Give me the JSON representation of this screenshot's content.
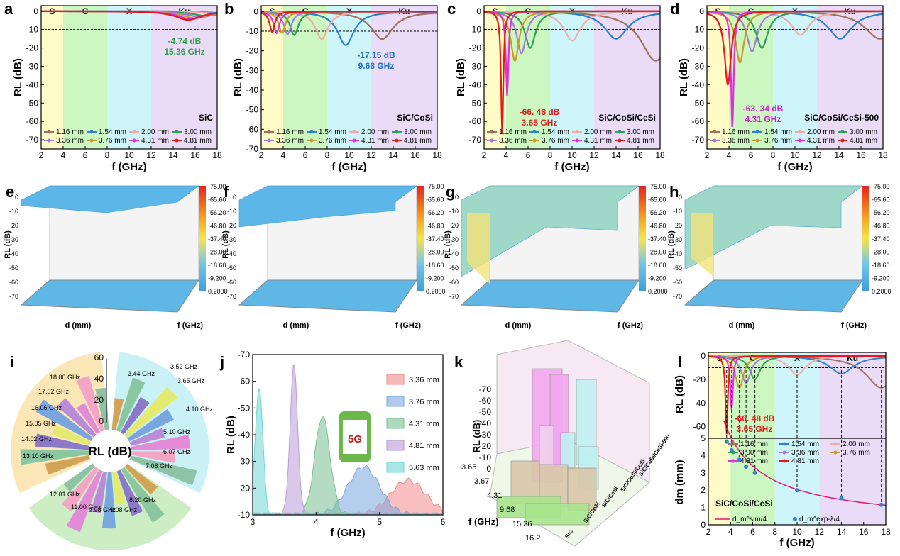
{
  "chart_data": [
    {
      "panel": "a",
      "type": "line",
      "title": "SiC",
      "xlabel": "f (GHz)",
      "ylabel": "RL (dB)",
      "xlim": [
        2,
        18
      ],
      "ylim": [
        -75,
        3
      ],
      "xticks": [
        "2",
        "4",
        "6",
        "8",
        "10",
        "12",
        "14",
        "16",
        "18"
      ],
      "yticks": [
        "0",
        "-10",
        "-20",
        "-30",
        "-40",
        "-50",
        "-60",
        "-70"
      ],
      "bands": [
        "S",
        "C",
        "X",
        "Ku"
      ],
      "annotation": {
        "line1": "-4.74 dB",
        "line2": "15.36 GHz",
        "color": "#2a9d4b"
      },
      "legend": [
        "1.16 mm",
        "1.54 mm",
        "2.00 mm",
        "3.00 mm",
        "3.36 mm",
        "3.76 mm",
        "4.31 mm",
        "4.81 mm"
      ],
      "series": [
        {
          "name": "1.16 mm",
          "min_freq": 18.0,
          "min_rl": -0.8
        },
        {
          "name": "1.54 mm",
          "min_freq": 18.0,
          "min_rl": -1.0
        },
        {
          "name": "2.00 mm",
          "min_freq": 18.0,
          "min_rl": -1.3
        },
        {
          "name": "3.00 mm",
          "min_freq": 17.0,
          "min_rl": -2.5
        },
        {
          "name": "3.36 mm",
          "min_freq": 16.5,
          "min_rl": -3.2
        },
        {
          "name": "3.76 mm",
          "min_freq": 16.0,
          "min_rl": -3.8
        },
        {
          "name": "4.31 mm",
          "min_freq": 15.6,
          "min_rl": -4.3
        },
        {
          "name": "4.81 mm",
          "min_freq": 15.36,
          "min_rl": -4.74
        }
      ]
    },
    {
      "panel": "b",
      "type": "line",
      "title": "SiC/CoSi",
      "xlabel": "f (GHz)",
      "ylabel": "RL (dB)",
      "xlim": [
        2,
        18
      ],
      "ylim": [
        -70,
        3
      ],
      "xticks": [
        "2",
        "4",
        "6",
        "8",
        "10",
        "12",
        "14",
        "16",
        "18"
      ],
      "yticks": [
        "0",
        "-10",
        "-20",
        "-30",
        "-40",
        "-50",
        "-60",
        "-70"
      ],
      "bands": [
        "S",
        "C",
        "X",
        "Ku"
      ],
      "annotation": {
        "line1": "-17.15 dB",
        "line2": "9.68 GHz",
        "color": "#1f6fc4"
      },
      "legend": [
        "1.16 mm",
        "1.54 mm",
        "2.00 mm",
        "3.00 mm",
        "3.36 mm",
        "3.76 mm",
        "4.31 mm",
        "4.81 mm"
      ],
      "series": [
        {
          "name": "1.16 mm",
          "min_freq": 13.0,
          "min_rl": -14.0
        },
        {
          "name": "1.54 mm",
          "min_freq": 9.68,
          "min_rl": -17.15
        },
        {
          "name": "2.00 mm",
          "min_freq": 7.5,
          "min_rl": -14.0
        },
        {
          "name": "3.00 mm",
          "min_freq": 5.0,
          "min_rl": -12.0
        },
        {
          "name": "3.36 mm",
          "min_freq": 4.4,
          "min_rl": -11.5
        },
        {
          "name": "3.76 mm",
          "min_freq": 3.9,
          "min_rl": -11.0
        },
        {
          "name": "4.31 mm",
          "min_freq": 3.4,
          "min_rl": -11.0
        },
        {
          "name": "4.81 mm",
          "min_freq": 3.0,
          "min_rl": -10.5
        }
      ]
    },
    {
      "panel": "c",
      "type": "line",
      "title": "SiC/CoSi/CeSi",
      "xlabel": "f (GHz)",
      "ylabel": "RL (dB)",
      "xlim": [
        2,
        18
      ],
      "ylim": [
        -75,
        3
      ],
      "xticks": [
        "2",
        "4",
        "6",
        "8",
        "10",
        "12",
        "14",
        "16",
        "18"
      ],
      "yticks": [
        "0",
        "-10",
        "-20",
        "-30",
        "-40",
        "-50",
        "-60",
        "-70"
      ],
      "bands": [
        "S",
        "C",
        "X",
        "Ku"
      ],
      "annotation": {
        "line1": "-66. 48 dB",
        "line2": "3.65 GHz",
        "color": "#e01b1b"
      },
      "legend": [
        "1.16 mm",
        "1.54 mm",
        "2.00 mm",
        "3.00 mm",
        "3.36 mm",
        "3.76 mm",
        "4.31 mm",
        "4.81 mm"
      ],
      "series": [
        {
          "name": "1.16 mm",
          "min_freq": 17.6,
          "min_rl": -27.0
        },
        {
          "name": "1.54 mm",
          "min_freq": 14.0,
          "min_rl": -15.0
        },
        {
          "name": "2.00 mm",
          "min_freq": 10.0,
          "min_rl": -16.0
        },
        {
          "name": "3.00 mm",
          "min_freq": 6.2,
          "min_rl": -20.0
        },
        {
          "name": "3.36 mm",
          "min_freq": 5.4,
          "min_rl": -23.0
        },
        {
          "name": "3.76 mm",
          "min_freq": 4.8,
          "min_rl": -27.0
        },
        {
          "name": "4.31 mm",
          "min_freq": 4.1,
          "min_rl": -46.0
        },
        {
          "name": "4.81 mm",
          "min_freq": 3.65,
          "min_rl": -66.48
        }
      ]
    },
    {
      "panel": "d",
      "type": "line",
      "title": "SiC/CoSi/CeSi-500",
      "xlabel": "f (GHz)",
      "ylabel": "RL (dB)",
      "xlim": [
        2,
        18
      ],
      "ylim": [
        -75,
        3
      ],
      "xticks": [
        "2",
        "4",
        "6",
        "8",
        "10",
        "12",
        "14",
        "16",
        "18"
      ],
      "yticks": [
        "0",
        "-10",
        "-20",
        "-30",
        "-40",
        "-50",
        "-60",
        "-70"
      ],
      "bands": [
        "S",
        "C",
        "X",
        "Ku"
      ],
      "annotation": {
        "line1": "-63. 34 dB",
        "line2": "4.31 GHz",
        "color": "#d81bd8"
      },
      "legend": [
        "1.16 mm",
        "1.54 mm",
        "2.00 mm",
        "3.00 mm",
        "3.36 mm",
        "3.76 mm",
        "4.31 mm",
        "4.81 mm"
      ],
      "series": [
        {
          "name": "1.16 mm",
          "min_freq": 17.7,
          "min_rl": -15.0
        },
        {
          "name": "1.54 mm",
          "min_freq": 14.1,
          "min_rl": -15.0
        },
        {
          "name": "2.00 mm",
          "min_freq": 10.5,
          "min_rl": -13.0
        },
        {
          "name": "3.00 mm",
          "min_freq": 7.0,
          "min_rl": -20.0
        },
        {
          "name": "3.36 mm",
          "min_freq": 6.1,
          "min_rl": -22.0
        },
        {
          "name": "3.76 mm",
          "min_freq": 5.0,
          "min_rl": -28.0
        },
        {
          "name": "4.31 mm",
          "min_freq": 4.31,
          "min_rl": -63.34
        },
        {
          "name": "4.81 mm",
          "min_freq": 3.9,
          "min_rl": -40.0
        }
      ]
    },
    {
      "panel": "e-h",
      "type": "surface3d",
      "panels": [
        "e",
        "f",
        "g",
        "h"
      ],
      "zlabel": "RL (dB)",
      "xlabel": "d (mm)",
      "ylabel": "f (GHz)",
      "zticks": [
        "0",
        "-10",
        "-20",
        "-30",
        "-40",
        "-50",
        "-60",
        "-70"
      ],
      "colorbar": [
        "-75.00",
        "-65.60",
        "-56.20",
        "-46.80",
        "-37.40",
        "-28.00",
        "-18.60",
        "-9.200",
        "0.2000"
      ]
    },
    {
      "panel": "i",
      "type": "polar-bar",
      "center_label": "RL (dB)",
      "radial_ticks": [
        "0",
        "20",
        "40",
        "60"
      ],
      "freq_labels": [
        "3.52 GHz",
        "3.65 GHz",
        "4.10 GHz",
        "5.10 GHz",
        "6.07 GHz",
        "7.08 GHz",
        "8.20 GHz",
        "9.08 GHz",
        "9.98 GHz",
        "11.00 GHz",
        "12.01 GHz",
        "13.10 GHz",
        "14.02 GHz",
        "15.05 GHz",
        "16.06 GHz",
        "17.02 GHz",
        "18.00 GHz",
        "3.44 GHz"
      ]
    },
    {
      "panel": "j",
      "type": "area",
      "xlabel": "f (GHz)",
      "ylabel": "RL (dB)",
      "xlim": [
        3,
        6
      ],
      "ylim": [
        -70,
        -10
      ],
      "xticks": [
        "3",
        "4",
        "5",
        "6"
      ],
      "yticks": [
        "-70",
        "-60",
        "-50",
        "-40",
        "-30",
        "-20",
        "-10"
      ],
      "badge": "5G",
      "series": [
        {
          "name": "3.36 mm",
          "color": "#f08a8a",
          "peak_freq": 5.45,
          "peak_rl": -23
        },
        {
          "name": "3.76 mm",
          "color": "#7aa6e0",
          "peak_freq": 4.75,
          "peak_rl": -28
        },
        {
          "name": "4.31 mm",
          "color": "#79c08f",
          "peak_freq": 4.1,
          "peak_rl": -47
        },
        {
          "name": "4.81 mm",
          "color": "#b99ad8",
          "peak_freq": 3.65,
          "peak_rl": -66
        },
        {
          "name": "5.63 mm",
          "color": "#6fd6d6",
          "peak_freq": 3.1,
          "peak_rl": -58
        }
      ]
    },
    {
      "panel": "k",
      "type": "bar3d",
      "xlabel": "f (GHz)",
      "zlabel": "RL (dB)",
      "zticks": [
        "-70",
        "-60",
        "-50",
        "-40",
        "-30",
        "-20",
        "-10",
        "0"
      ],
      "freq_ticks": [
        "3.65",
        "3.67",
        "4.31",
        "9.68",
        "15.36",
        "16.2"
      ],
      "samples": [
        "SiC",
        "SiC/CoSi",
        "SiC/CeSi",
        "SiC/CoSi/CeSi",
        "SiC/CoSi/CeSi-500"
      ]
    },
    {
      "panel": "l",
      "type": "line",
      "title": "SiC/CoSi/CeSi",
      "xlabel": "f (GHz)",
      "ylabel_top": "RL (dB)",
      "ylabel_bottom": "dm (mm)",
      "xlim": [
        2,
        18
      ],
      "xticks": [
        "2",
        "4",
        "6",
        "8",
        "10",
        "12",
        "14",
        "16",
        "18"
      ],
      "yticks_top": [
        "0",
        "-20",
        "-40",
        "-60"
      ],
      "yticks_bottom": [
        "0",
        "1",
        "2",
        "3",
        "4",
        "5"
      ],
      "bands": [
        "S",
        "C",
        "X",
        "Ku"
      ],
      "annotation": {
        "line1": "-66. 48 dB",
        "line2": "3.65 GHz",
        "color": "#e01b1b"
      },
      "legend": [
        "1.16 mm",
        "1.54 mm",
        "2.00 mm",
        "3.00 mm",
        "3.36 mm",
        "3.76 mm",
        "4.31 mm",
        "4.81 mm"
      ],
      "legend_bottom": [
        "d_m^sim/4",
        "d_m^exp-λ/4"
      ],
      "dm_points": [
        {
          "f": 3.65,
          "d": 4.81
        },
        {
          "f": 4.1,
          "d": 4.31
        },
        {
          "f": 4.8,
          "d": 3.76
        },
        {
          "f": 5.4,
          "d": 3.36
        },
        {
          "f": 6.2,
          "d": 3.0
        },
        {
          "f": 10.0,
          "d": 2.0
        },
        {
          "f": 14.0,
          "d": 1.54
        },
        {
          "f": 17.6,
          "d": 1.16
        }
      ]
    }
  ],
  "labels": {
    "a": "a",
    "b": "b",
    "c": "c",
    "d": "d",
    "e": "e",
    "f": "f",
    "g": "g",
    "h": "h",
    "i": "i",
    "j": "j",
    "k": "k",
    "l": "l"
  }
}
